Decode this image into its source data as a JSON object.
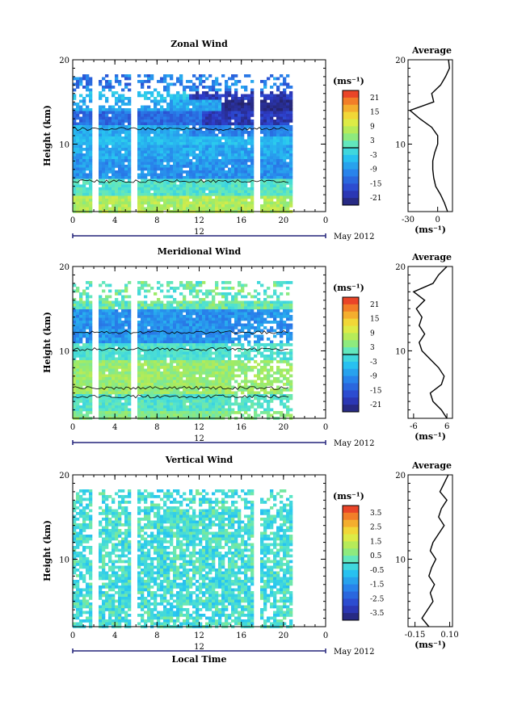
{
  "chart_data": [
    {
      "type": "heatmap",
      "title": "Zonal Wind",
      "ylabel": "Height (km)",
      "xlabel": "",
      "y_ticks": [
        "20",
        "10"
      ],
      "x_ticks": [
        "0",
        "4",
        "8",
        "12",
        "16",
        "20",
        "0"
      ],
      "xlim": [
        0,
        24
      ],
      "ylim": [
        2,
        20
      ],
      "date_label": "12",
      "date_suffix": "May 2012",
      "colorbar": {
        "unit": "(ms⁻¹)",
        "min": -24,
        "max": 24,
        "ticks": [
          "21",
          "15",
          "9",
          "3",
          "-3",
          "-9",
          "-15",
          "-21"
        ]
      },
      "gaps_hours": [
        2.1,
        5.8,
        17.3
      ],
      "data_end_hour": 20.7,
      "profile": {
        "title": "Average",
        "xlim": [
          -30,
          15
        ],
        "x_ticks": [
          "-30",
          "0"
        ],
        "x_tick_values": [
          -30,
          0
        ],
        "y_ticks": [
          "20",
          "10"
        ],
        "unit": "(ms⁻¹)",
        "heights_km": [
          2,
          3,
          4,
          5,
          6,
          7,
          8,
          9,
          10,
          11,
          12,
          13,
          14,
          15,
          16,
          17,
          18,
          19,
          20
        ],
        "values": [
          10,
          7,
          3,
          -2,
          -4,
          -5,
          -5,
          -3,
          0,
          0,
          -6,
          -18,
          -28,
          -4,
          -6,
          3,
          8,
          12,
          11
        ]
      }
    },
    {
      "type": "heatmap",
      "title": "Meridional Wind",
      "ylabel": "Height (km)",
      "xlabel": "",
      "y_ticks": [
        "20",
        "10"
      ],
      "x_ticks": [
        "0",
        "4",
        "8",
        "12",
        "16",
        "20",
        "0"
      ],
      "xlim": [
        0,
        24
      ],
      "ylim": [
        2,
        20
      ],
      "date_label": "12",
      "date_suffix": "May 2012",
      "colorbar": {
        "unit": "(ms⁻¹)",
        "min": -24,
        "max": 24,
        "ticks": [
          "21",
          "15",
          "9",
          "3",
          "-3",
          "-9",
          "-15",
          "-21"
        ]
      },
      "gaps_hours": [
        2.1,
        5.8
      ],
      "data_end_hour": 20.7,
      "profile": {
        "title": "Average",
        "xlim": [
          -8,
          8
        ],
        "x_ticks": [
          "-6",
          "6"
        ],
        "x_tick_values": [
          -6,
          6
        ],
        "y_ticks": [
          "20",
          "10"
        ],
        "unit": "(ms⁻¹)",
        "heights_km": [
          2,
          3,
          4,
          5,
          6,
          7,
          8,
          9,
          10,
          11,
          12,
          13,
          14,
          15,
          16,
          17,
          18,
          19,
          20
        ],
        "values": [
          6,
          4,
          1,
          0,
          4,
          5,
          3,
          0,
          -3,
          -4,
          -2,
          -4,
          -3,
          -5,
          -2,
          -6,
          1,
          3,
          6
        ]
      }
    },
    {
      "type": "heatmap",
      "title": "Vertical Wind",
      "ylabel": "Height (km)",
      "xlabel": "Local Time",
      "y_ticks": [
        "20",
        "10"
      ],
      "x_ticks": [
        "0",
        "4",
        "8",
        "12",
        "16",
        "20",
        "0"
      ],
      "xlim": [
        0,
        24
      ],
      "ylim": [
        2,
        20
      ],
      "date_label": "12",
      "date_suffix": "May 2012",
      "colorbar": {
        "unit": "(ms⁻¹)",
        "min": -4,
        "max": 4,
        "ticks": [
          "3.5",
          "2.5",
          "1.5",
          "0.5",
          "-0.5",
          "-1.5",
          "-2.5",
          "-3.5"
        ]
      },
      "gaps_hours": [
        2.1,
        5.8,
        17.3
      ],
      "data_end_hour": 20.7,
      "profile": {
        "title": "Average",
        "xlim": [
          -0.2,
          0.12
        ],
        "x_ticks": [
          "-0.15",
          "0.10"
        ],
        "x_tick_values": [
          -0.15,
          0.1
        ],
        "y_ticks": [
          "20",
          "10"
        ],
        "unit": "(ms⁻¹)",
        "heights_km": [
          2,
          3,
          4,
          5,
          6,
          7,
          8,
          9,
          10,
          11,
          12,
          13,
          14,
          15,
          16,
          17,
          18,
          19,
          20
        ],
        "values": [
          -0.05,
          -0.1,
          -0.06,
          -0.02,
          -0.04,
          -0.01,
          -0.05,
          -0.03,
          0.0,
          -0.04,
          -0.02,
          0.02,
          0.06,
          0.02,
          0.04,
          0.08,
          0.03,
          0.06,
          0.09
        ]
      }
    }
  ]
}
